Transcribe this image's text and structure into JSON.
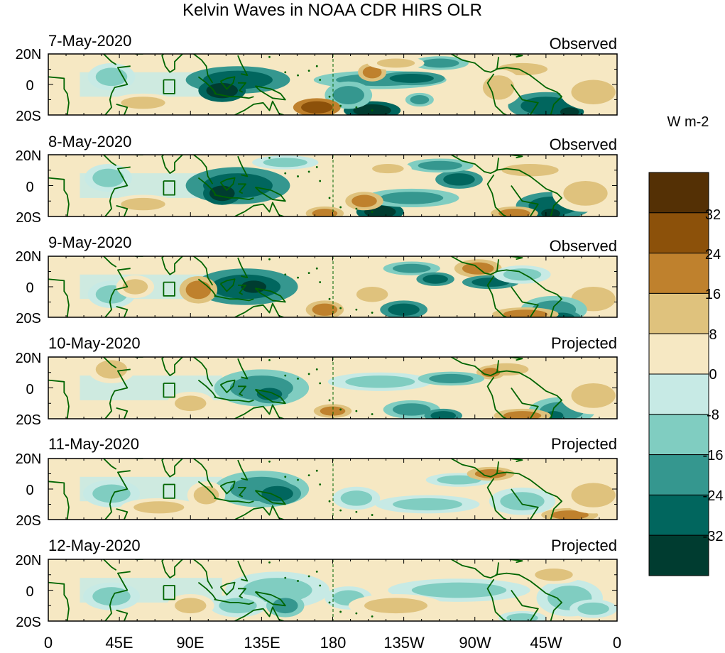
{
  "title": "Kelvin Waves in NOAA CDR HIRS OLR",
  "lat_labels": [
    "20N",
    "0",
    "20S"
  ],
  "lon_labels": [
    "0",
    "45E",
    "90E",
    "135E",
    "180",
    "135W",
    "90W",
    "45W",
    "0"
  ],
  "panels": [
    {
      "date": "7-May-2020",
      "status": "Observed"
    },
    {
      "date": "8-May-2020",
      "status": "Observed"
    },
    {
      "date": "9-May-2020",
      "status": "Observed"
    },
    {
      "date": "10-May-2020",
      "status": "Projected"
    },
    {
      "date": "11-May-2020",
      "status": "Projected"
    },
    {
      "date": "12-May-2020",
      "status": "Projected"
    }
  ],
  "colorbar": {
    "unit": "W m-2",
    "tick_labels": [
      "32",
      "24",
      "16",
      "8",
      "0",
      "-8",
      "-16",
      "-24",
      "-32"
    ],
    "colors": [
      "#543005",
      "#8c510a",
      "#bf812d",
      "#dfc27d",
      "#f6e8c3",
      "#c7eae5",
      "#80cdc1",
      "#35978f",
      "#01665e",
      "#003c30"
    ]
  },
  "colors": {
    "land_outline": "#006400"
  }
}
